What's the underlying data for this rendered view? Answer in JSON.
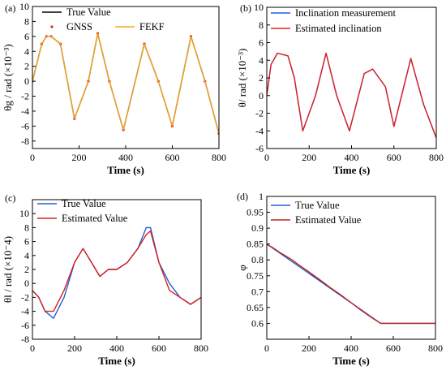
{
  "chart_data": [
    {
      "panel_label": "(a)",
      "type": "line",
      "xlabel": "Time (s)",
      "ylabel": "θg / rad (×10⁻³)",
      "xlim": [
        0,
        800
      ],
      "ylim": [
        -9,
        10
      ],
      "xticks": [
        0,
        200,
        400,
        600,
        800
      ],
      "yticks": [
        -8,
        -6,
        -4,
        -2,
        0,
        2,
        4,
        6,
        8,
        10
      ],
      "legend_position": "top-left",
      "series": [
        {
          "name": "True Value",
          "color": "#000000",
          "style": "line",
          "x": [
            0,
            40,
            60,
            80,
            120,
            180,
            240,
            280,
            330,
            390,
            480,
            540,
            600,
            680,
            740,
            800
          ],
          "y": [
            0,
            5,
            6,
            6,
            5,
            -5,
            0,
            6.4,
            0,
            -6.5,
            5,
            0,
            -6,
            6,
            0,
            -7
          ]
        },
        {
          "name": "GNSS",
          "color": "#e02020",
          "style": "dots",
          "x": [
            0,
            40,
            60,
            80,
            120,
            180,
            240,
            280,
            330,
            390,
            480,
            540,
            600,
            680,
            740,
            800
          ],
          "y": [
            0,
            5,
            6,
            6,
            5,
            -5,
            0,
            6.4,
            0,
            -6.5,
            5,
            0,
            -6,
            6,
            0,
            -7
          ]
        },
        {
          "name": "FEKF",
          "color": "#f5a623",
          "style": "line",
          "x": [
            0,
            40,
            60,
            80,
            120,
            180,
            240,
            280,
            330,
            390,
            480,
            540,
            600,
            680,
            740,
            800
          ],
          "y": [
            0,
            5,
            6,
            6,
            5,
            -5,
            0,
            6.4,
            0,
            -6.5,
            5,
            0,
            -6,
            6,
            0,
            -7
          ]
        }
      ]
    },
    {
      "panel_label": "(b)",
      "type": "line",
      "xlabel": "Time (s)",
      "ylabel": "θ/ rad (×10⁻³)",
      "xlim": [
        0,
        800
      ],
      "ylim": [
        -6,
        10
      ],
      "xticks": [
        0,
        200,
        400,
        600,
        800
      ],
      "yticks": [
        -6,
        -4,
        -2,
        0,
        2,
        4,
        6,
        8,
        10
      ],
      "legend_position": "top-right",
      "series": [
        {
          "name": "Inclination measurement",
          "color": "#1f5fd6",
          "style": "line",
          "x": [
            0,
            20,
            50,
            100,
            130,
            170,
            230,
            280,
            330,
            390,
            460,
            500,
            560,
            600,
            680,
            740,
            800
          ],
          "y": [
            0,
            3.5,
            4.8,
            4.5,
            2,
            -4,
            0,
            4.8,
            0,
            -4,
            2.5,
            3,
            1,
            -3.5,
            4.2,
            -1,
            -4.8
          ]
        },
        {
          "name": "Estimated inclination",
          "color": "#e02020",
          "style": "line",
          "x": [
            0,
            20,
            50,
            100,
            130,
            170,
            230,
            280,
            330,
            390,
            460,
            500,
            560,
            600,
            680,
            740,
            800
          ],
          "y": [
            0,
            3.5,
            4.8,
            4.5,
            2,
            -4,
            0,
            4.8,
            0,
            -4,
            2.5,
            3,
            1,
            -3.5,
            4.2,
            -1,
            -4.8
          ]
        }
      ]
    },
    {
      "panel_label": "(c)",
      "type": "line",
      "xlabel": "Time (s)",
      "ylabel": "θl / rad (×10⁻4)",
      "xlim": [
        0,
        800
      ],
      "ylim": [
        -8,
        12
      ],
      "xticks": [
        0,
        200,
        400,
        600,
        800
      ],
      "yticks": [
        -8,
        -6,
        -4,
        -2,
        0,
        2,
        4,
        6,
        8,
        10
      ],
      "legend_position": "top-left",
      "series": [
        {
          "name": "True Value",
          "color": "#1f5fd6",
          "style": "line",
          "x": [
            0,
            30,
            60,
            100,
            150,
            200,
            240,
            280,
            320,
            360,
            400,
            450,
            500,
            540,
            560,
            600,
            650,
            700,
            750,
            800
          ],
          "y": [
            -1,
            -2,
            -4,
            -5,
            -2,
            3,
            5,
            3,
            1,
            2,
            2,
            3,
            5,
            8,
            8,
            3,
            0,
            -2,
            -3,
            -2
          ]
        },
        {
          "name": "Estimated Value",
          "color": "#d62020",
          "style": "line",
          "x": [
            0,
            30,
            60,
            100,
            150,
            200,
            240,
            280,
            320,
            360,
            400,
            450,
            500,
            540,
            560,
            600,
            650,
            700,
            750,
            800
          ],
          "y": [
            -1,
            -2,
            -4,
            -4,
            -1,
            3,
            5,
            3,
            1,
            2,
            2,
            3,
            5,
            7,
            7.5,
            3,
            -1,
            -2,
            -3,
            -2
          ]
        }
      ]
    },
    {
      "panel_label": "(d)",
      "type": "line",
      "xlabel": "Time (s)",
      "ylabel": "φ",
      "xlim": [
        0,
        800
      ],
      "ylim": [
        0.55,
        1.0
      ],
      "xticks": [
        0,
        200,
        400,
        600,
        800
      ],
      "yticks": [
        0.6,
        0.65,
        0.7,
        0.75,
        0.8,
        0.85,
        0.9,
        0.95,
        1.0
      ],
      "legend_position": "top-left",
      "series": [
        {
          "name": "True Value",
          "color": "#1f5fd6",
          "style": "line",
          "x": [
            0,
            540,
            800
          ],
          "y": [
            0.85,
            0.6,
            0.6
          ]
        },
        {
          "name": "Estimated Value",
          "color": "#c02020",
          "style": "line",
          "x": [
            0,
            30,
            60,
            90,
            120,
            150,
            200,
            250,
            300,
            350,
            400,
            450,
            500,
            540,
            800
          ],
          "y": [
            0.849,
            0.838,
            0.824,
            0.812,
            0.8,
            0.785,
            0.762,
            0.738,
            0.713,
            0.69,
            0.665,
            0.64,
            0.617,
            0.6,
            0.6
          ]
        }
      ]
    }
  ]
}
